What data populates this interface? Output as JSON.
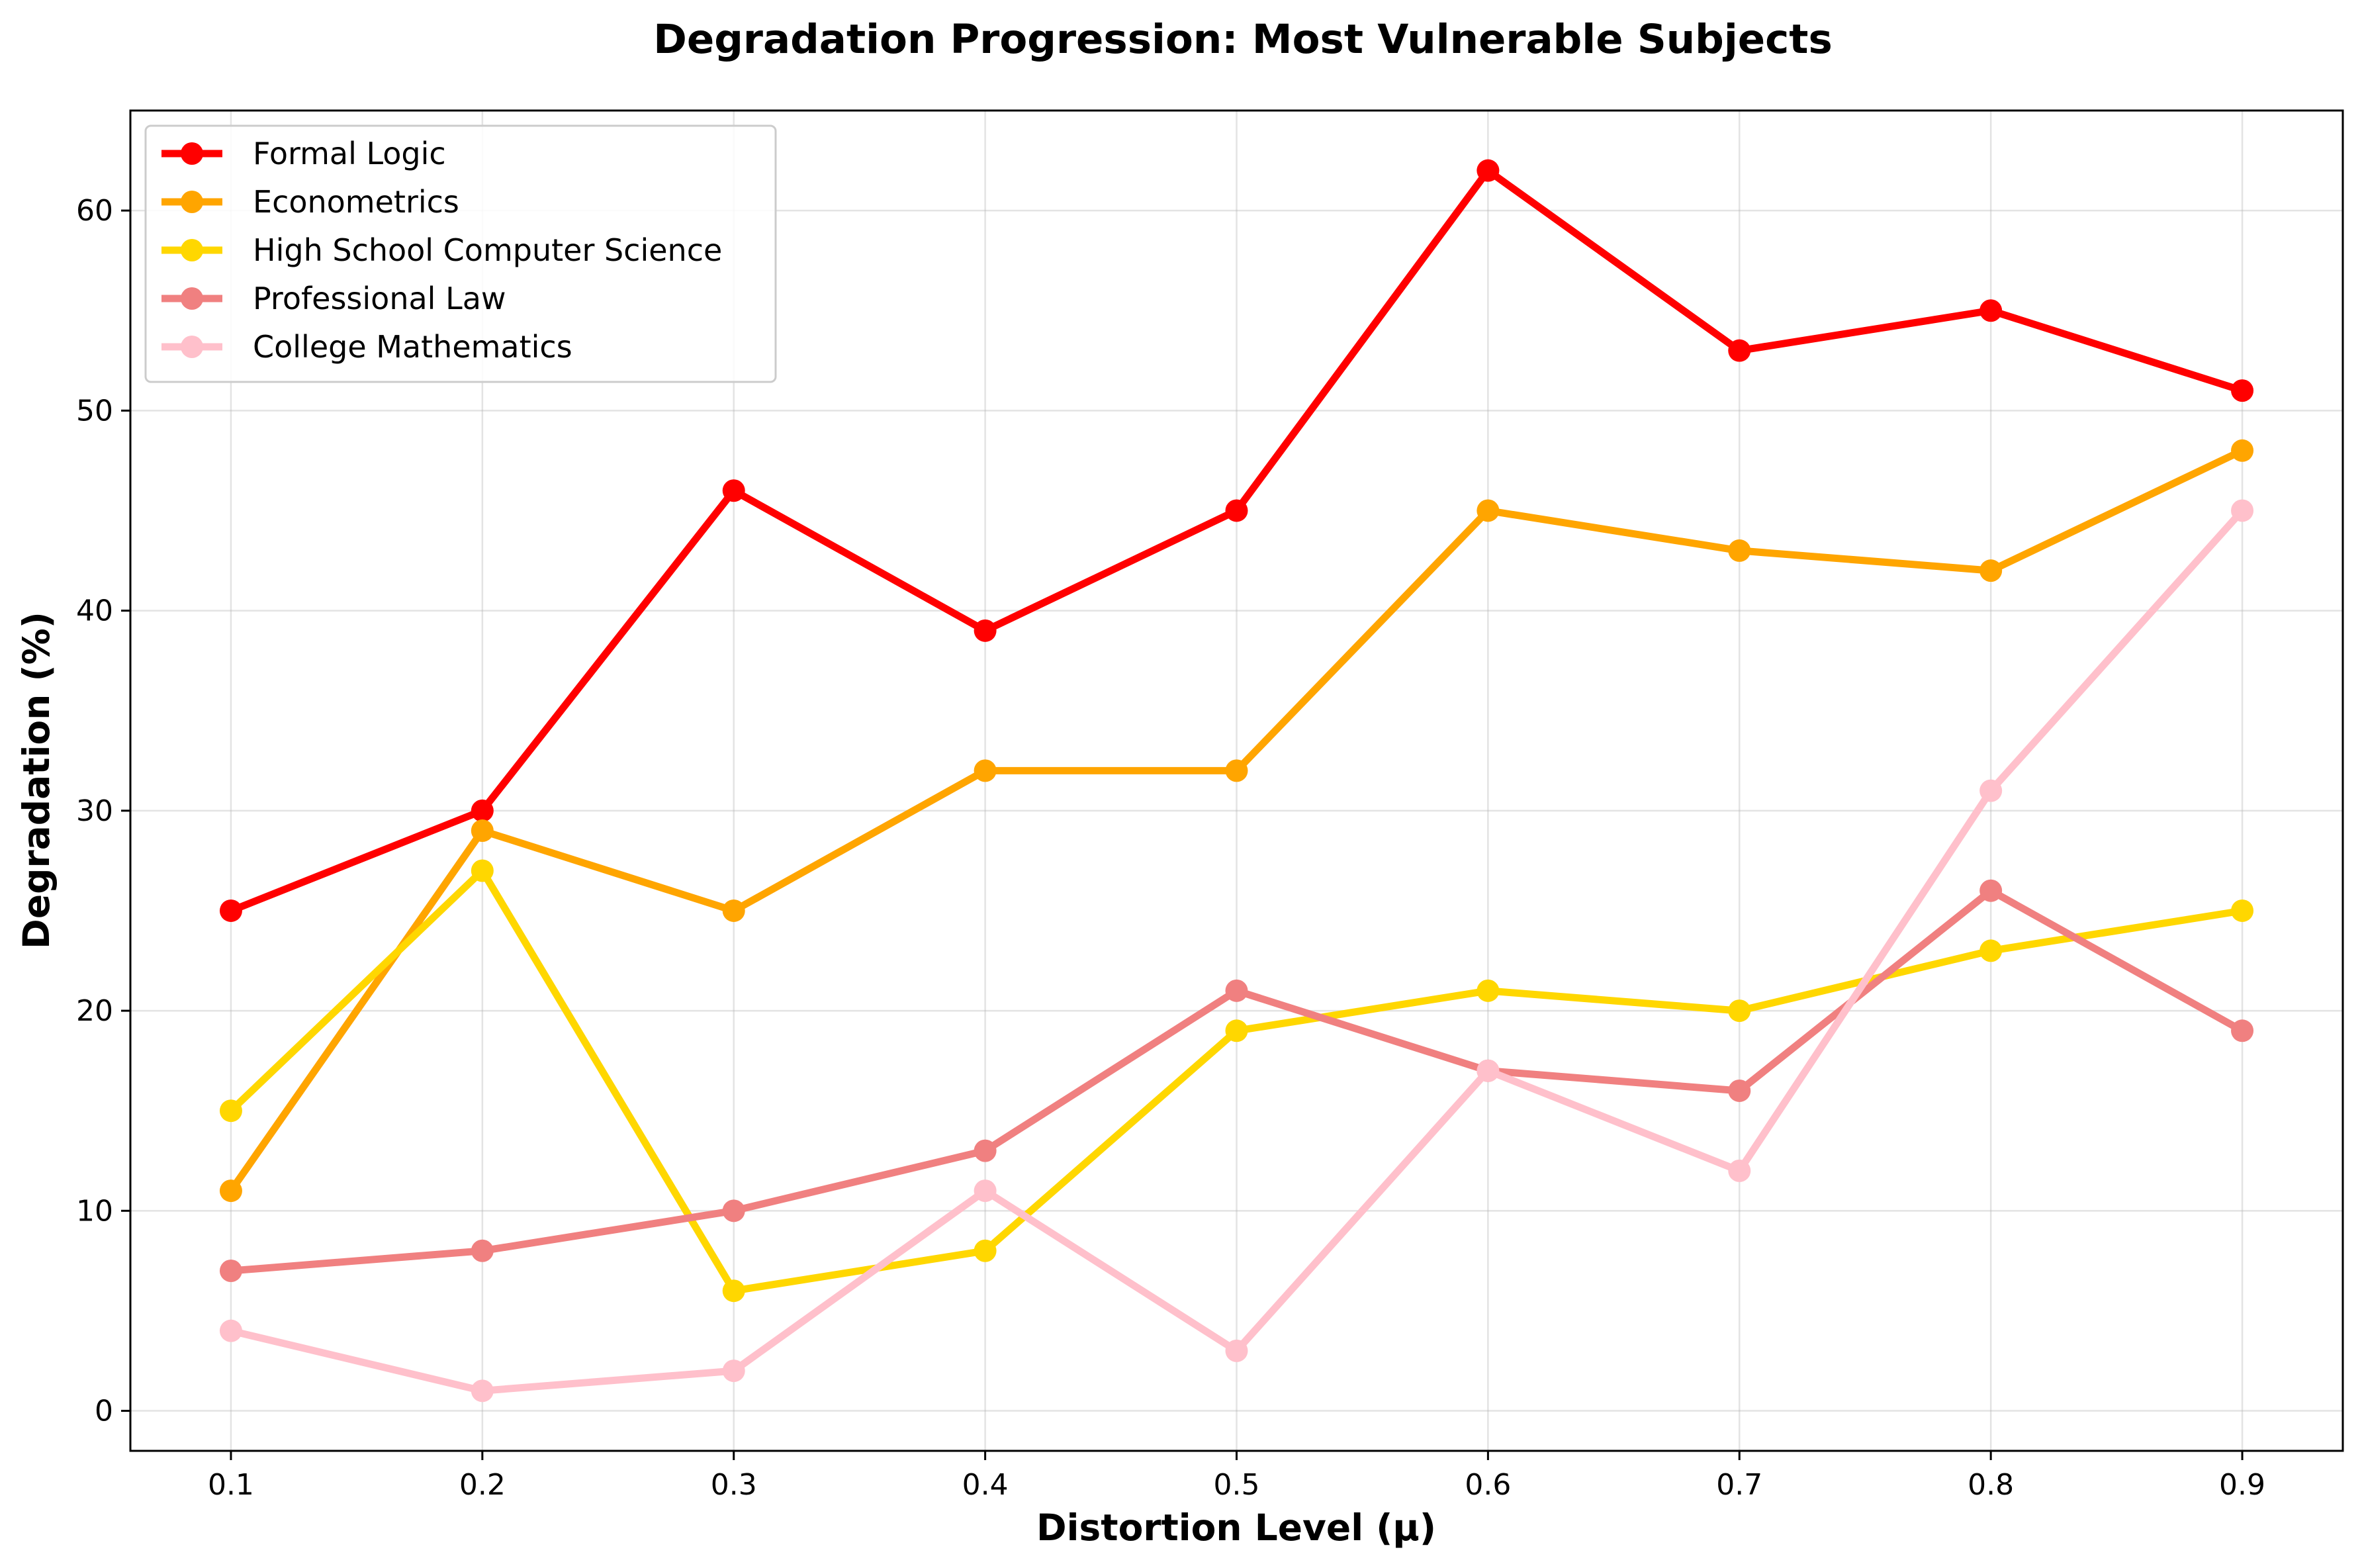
{
  "chart_data": {
    "type": "line",
    "title": "Degradation Progression: Most Vulnerable Subjects",
    "xlabel": "Distortion Level (μ)",
    "ylabel": "Degradation (%)",
    "x": [
      0.1,
      0.2,
      0.3,
      0.4,
      0.5,
      0.6,
      0.7,
      0.8,
      0.9
    ],
    "x_tick_labels": [
      "0.1",
      "0.2",
      "0.3",
      "0.4",
      "0.5",
      "0.6",
      "0.7",
      "0.8",
      "0.9"
    ],
    "y_ticks": [
      0,
      10,
      20,
      30,
      40,
      50,
      60
    ],
    "y_tick_labels": [
      "0",
      "10",
      "20",
      "30",
      "40",
      "50",
      "60"
    ],
    "xlim": [
      0.06,
      0.94
    ],
    "ylim": [
      -2,
      65
    ],
    "grid": true,
    "legend_position": "top-left",
    "series": [
      {
        "name": "Formal Logic",
        "color": "#ff0000",
        "values": [
          25,
          30,
          46,
          39,
          45,
          62,
          53,
          55,
          51
        ]
      },
      {
        "name": "Econometrics",
        "color": "#ffa500",
        "values": [
          11,
          29,
          25,
          32,
          32,
          45,
          43,
          42,
          48
        ]
      },
      {
        "name": "High School Computer Science",
        "color": "#ffd700",
        "values": [
          15,
          27,
          6,
          8,
          19,
          21,
          20,
          23,
          25
        ]
      },
      {
        "name": "Professional Law",
        "color": "#f08080",
        "values": [
          7,
          8,
          10,
          13,
          21,
          17,
          16,
          26,
          19
        ]
      },
      {
        "name": "College Mathematics",
        "color": "#ffc0cb",
        "values": [
          4,
          1,
          2,
          11,
          3,
          17,
          12,
          31,
          45
        ]
      }
    ]
  }
}
